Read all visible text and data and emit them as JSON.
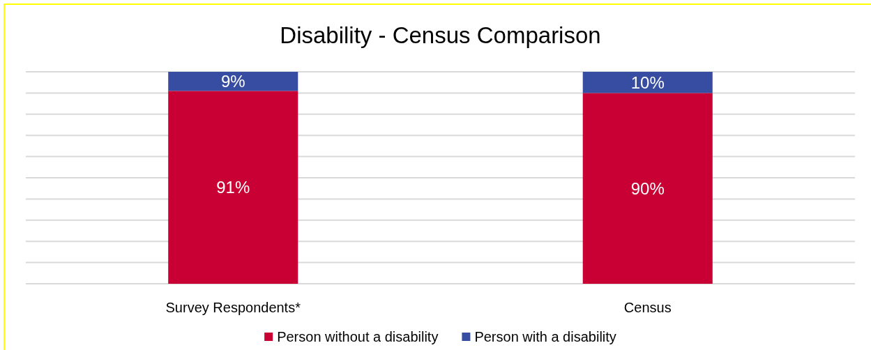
{
  "chart_data": {
    "type": "bar",
    "title": "Disability - Census Comparison",
    "categories": [
      "Survey Respondents*",
      "Census"
    ],
    "stacked": true,
    "series": [
      {
        "name": "Person without a disability",
        "color": "#c80033",
        "values": [
          91,
          90
        ],
        "value_labels": [
          "91%",
          "90%"
        ]
      },
      {
        "name": "Person with a disability",
        "color": "#374da1",
        "values": [
          9,
          10
        ],
        "value_labels": [
          "9%",
          "10%"
        ]
      }
    ],
    "ylim": [
      0,
      100
    ],
    "yticks": [
      {
        "value": 0,
        "label": null
      },
      {
        "value": 10,
        "label": null
      },
      {
        "value": 20,
        "label": null
      },
      {
        "value": 30,
        "label": null
      },
      {
        "value": 40,
        "label": null
      },
      {
        "value": 50,
        "label": null
      },
      {
        "value": 60,
        "label": null
      },
      {
        "value": 70,
        "label": null
      },
      {
        "value": 80,
        "label": null
      },
      {
        "value": 90,
        "label": null
      },
      {
        "value": 100,
        "label": null
      }
    ],
    "tick_labels": "x",
    "grid": "y",
    "legend": "bottom"
  }
}
